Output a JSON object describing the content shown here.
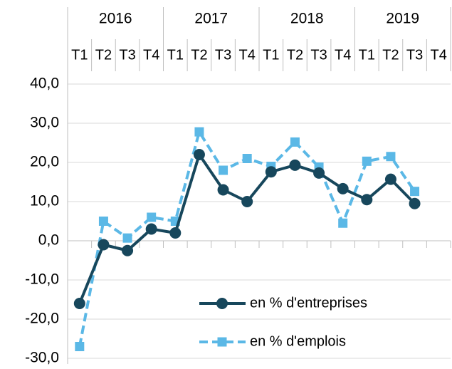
{
  "chart_data": {
    "type": "line",
    "years": [
      "2016",
      "2017",
      "2018",
      "2019"
    ],
    "categories": [
      "T1",
      "T2",
      "T3",
      "T4",
      "T1",
      "T2",
      "T3",
      "T4",
      "T1",
      "T2",
      "T3",
      "T4",
      "T1",
      "T2",
      "T3",
      "T4"
    ],
    "series": [
      {
        "name": "en % d'entreprises",
        "color": "#17475c",
        "dashed": false,
        "marker": "circle",
        "values": [
          -16,
          -1,
          -2.5,
          3,
          2,
          22,
          13,
          10,
          17.6,
          19.3,
          17.3,
          13.3,
          10.5,
          15.7,
          9.5,
          null
        ]
      },
      {
        "name": "en % d'emplois",
        "color": "#5bb8e6",
        "dashed": true,
        "marker": "square",
        "values": [
          -27,
          5,
          0.7,
          6,
          5,
          27.8,
          18,
          21,
          19,
          25.2,
          18.8,
          4.5,
          20.3,
          21.5,
          12.6,
          null
        ]
      }
    ],
    "ylim": [
      -30,
      40
    ],
    "yticks": [
      {
        "value": -30,
        "label": "-30,0"
      },
      {
        "value": -20,
        "label": "-20,0"
      },
      {
        "value": -10,
        "label": "-10,0"
      },
      {
        "value": 0,
        "label": "0,0"
      },
      {
        "value": 10,
        "label": "10,0"
      },
      {
        "value": 20,
        "label": "20,0"
      },
      {
        "value": 30,
        "label": "30,0"
      },
      {
        "value": 40,
        "label": "40,0"
      }
    ],
    "grid": true
  }
}
